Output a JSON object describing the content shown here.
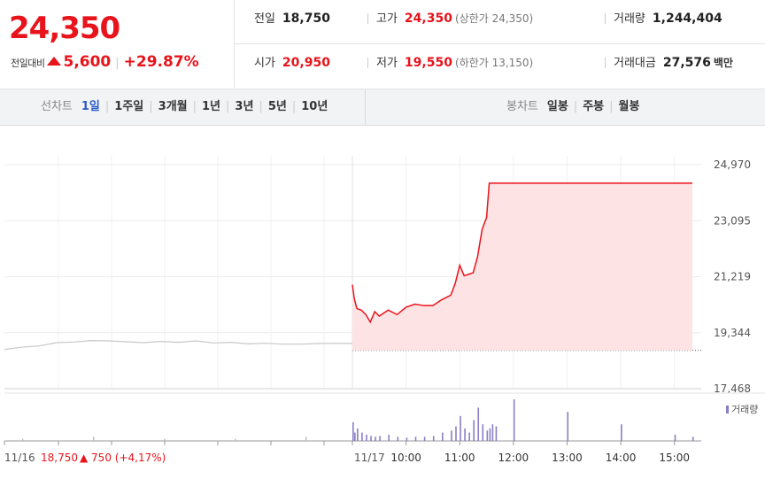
{
  "header": {
    "current_price": "24,350",
    "change_label": "전일대비",
    "change_amount": "5,600",
    "change_percent": "+29.87%",
    "prev_close": {
      "label": "전일",
      "value": "18,750"
    },
    "high": {
      "label": "고가",
      "value": "24,350",
      "sub": "(상한가 24,350)"
    },
    "volume": {
      "label": "거래량",
      "value": "1,244,404"
    },
    "open": {
      "label": "시가",
      "value": "20,950"
    },
    "low": {
      "label": "저가",
      "value": "19,550",
      "sub": "(하한가 13,150)"
    },
    "trade_value": {
      "label": "거래대금",
      "value": "27,576",
      "unit": "백만"
    }
  },
  "tabs": {
    "line_label": "선차트",
    "periods": [
      "1일",
      "1주일",
      "3개월",
      "1년",
      "3년",
      "5년",
      "10년"
    ],
    "active_period": "1일",
    "candle_label": "봉차트",
    "candles": [
      "일봉",
      "주봉",
      "월봉"
    ]
  },
  "colors": {
    "up": "#e8131b",
    "prev_line": "#c8c8c8",
    "volume": "#8a7fc4",
    "fill": "#fde3e4",
    "active_tab": "#2c5ac9"
  },
  "chart_data": [
    {
      "type": "line",
      "ylim": [
        17468,
        24970
      ],
      "y_ticks": [
        "24,970",
        "23,095",
        "21,219",
        "19,344",
        "17,468"
      ],
      "prev_day_series": {
        "name": "11/16",
        "x": [
          0,
          0.05,
          0.1,
          0.15,
          0.2,
          0.25,
          0.3,
          0.35,
          0.4,
          0.45,
          0.5,
          0.55,
          0.6,
          0.65,
          0.7,
          0.75,
          0.8,
          0.85,
          0.9,
          0.95,
          1.0
        ],
        "values": [
          18780,
          18860,
          18900,
          19010,
          19030,
          19080,
          19070,
          19040,
          19010,
          19050,
          19020,
          19070,
          19000,
          19020,
          18970,
          18990,
          18960,
          18960,
          18980,
          18990,
          18980
        ]
      },
      "today_series": {
        "name": "11/17",
        "x": [
          "09:00",
          "09:02",
          "09:05",
          "09:10",
          "09:15",
          "09:20",
          "09:25",
          "09:30",
          "09:40",
          "09:50",
          "10:00",
          "10:10",
          "10:20",
          "10:30",
          "10:40",
          "10:50",
          "10:55",
          "11:00",
          "11:05",
          "11:10",
          "11:15",
          "11:20",
          "11:25",
          "11:30",
          "11:33",
          "11:36",
          "11:40",
          "12:00",
          "13:00",
          "14:00",
          "15:00",
          "15:20"
        ],
        "values": [
          20950,
          20500,
          20150,
          20100,
          19950,
          19700,
          20050,
          19900,
          20100,
          19950,
          20200,
          20300,
          20250,
          20250,
          20450,
          20600,
          21000,
          21600,
          21250,
          21300,
          21350,
          21900,
          22800,
          23200,
          24350,
          24350,
          24350,
          24350,
          24350,
          24350,
          24350,
          24350
        ]
      },
      "prev_close": 18750,
      "time_labels": [
        "10:00",
        "11:00",
        "12:00",
        "13:00",
        "14:00",
        "15:00"
      ]
    },
    {
      "type": "bar",
      "legend": "거래량",
      "bars_prev": [
        0.05,
        0.1,
        0.05,
        0.05,
        0.1
      ],
      "bars": [
        0.45,
        0.2,
        0.3,
        0.2,
        0.15,
        0.12,
        0.1,
        0.12,
        0.15,
        0.1,
        0.08,
        0.1,
        0.1,
        0.12,
        0.2,
        0.25,
        0.35,
        0.6,
        0.3,
        0.2,
        0.5,
        0.8,
        0.4,
        0.25,
        0.3,
        0.4,
        0.35,
        1.0,
        0.7,
        0.4,
        0.15,
        0.1
      ]
    }
  ],
  "footer": {
    "prev_date": "11/16",
    "prev_close": "18,750",
    "prev_change": "▲ 750 (+4,17%)",
    "today_date": "11/17"
  }
}
